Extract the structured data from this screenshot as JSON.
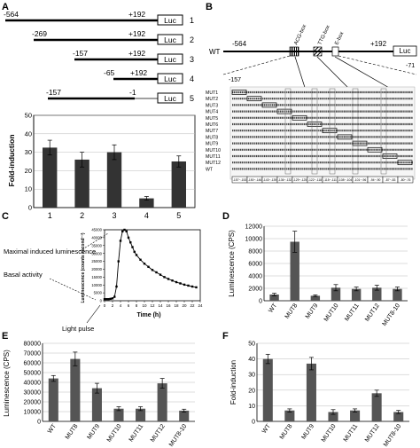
{
  "panels": {
    "A": {
      "letter": "A",
      "constructs": [
        {
          "id": "1",
          "start": "-564",
          "end": "+192",
          "reporter": "Luc"
        },
        {
          "id": "2",
          "start": "-269",
          "end": "+192",
          "reporter": "Luc"
        },
        {
          "id": "3",
          "start": "-157",
          "end": "+192",
          "reporter": "Luc"
        },
        {
          "id": "4",
          "start": "-65",
          "end": "+192",
          "reporter": "Luc"
        },
        {
          "id": "5",
          "start": "-157",
          "end": "-1",
          "reporter": "Luc"
        }
      ]
    },
    "B": {
      "letter": "B",
      "wt_label": "WT",
      "start": "-564",
      "end": "+192",
      "reporter": "Luc",
      "boxes": [
        "ACG-box",
        "TTG-box",
        "E-box"
      ],
      "zoom_start": "-157",
      "zoom_end": "-71",
      "rows": [
        "MUT1",
        "MUT2",
        "MUT3",
        "MUT4",
        "MUT5",
        "MUT6",
        "MUT7",
        "MUT8",
        "MUT9",
        "MUT10",
        "MUT11",
        "MUT12",
        "WT"
      ],
      "segments": [
        "-157~-153",
        "-150~-146",
        "-143~-139",
        "-136~-132",
        "-129~-125",
        "-122~-118",
        "-115~-111",
        "-108~-104",
        "-101~-96",
        "-94~-90",
        "-87~-83",
        "-80~-76"
      ]
    }
  },
  "chart_data": [
    {
      "panel": "A",
      "type": "bar",
      "categories": [
        "1",
        "2",
        "3",
        "4",
        "5"
      ],
      "values": [
        32.5,
        26,
        30,
        5,
        25
      ],
      "errors": [
        4,
        4,
        4,
        1,
        3
      ],
      "ylabel": "Fold-induction",
      "ylim": [
        0,
        50
      ],
      "yticks": [
        "0",
        "10",
        "20",
        "30",
        "40",
        "50"
      ],
      "grid": true,
      "color": "#333333"
    },
    {
      "panel": "C",
      "type": "line",
      "x": [
        0,
        0.5,
        1,
        1.5,
        2,
        2.5,
        3,
        3.5,
        4,
        4.5,
        5,
        5.5,
        6,
        6.5,
        7,
        7.5,
        8,
        9,
        10,
        11,
        12,
        13,
        14,
        15,
        16,
        17,
        18,
        19,
        20,
        21,
        22,
        23
      ],
      "y": [
        1000,
        1000,
        1000,
        1200,
        1500,
        2500,
        9000,
        25000,
        38000,
        44000,
        45000,
        44000,
        40000,
        37000,
        34000,
        31000,
        29000,
        26000,
        23500,
        21500,
        19500,
        18000,
        16500,
        15000,
        13800,
        12800,
        11800,
        11000,
        10200,
        9600,
        9000,
        8500
      ],
      "xlabel": "Time (h)",
      "ylabel": "Luminescence (counts second⁻¹)",
      "xlim": [
        0,
        24
      ],
      "ylim": [
        0,
        45000
      ],
      "xticks": [
        "0",
        "2",
        "4",
        "6",
        "8",
        "10",
        "12",
        "14",
        "16",
        "18",
        "20",
        "22",
        "24"
      ],
      "yticks": [
        "0",
        "5000",
        "10000",
        "15000",
        "20000",
        "25000",
        "30000",
        "35000",
        "40000",
        "45000"
      ],
      "annotations": [
        "Maximal induced luminescence",
        "Basal activity",
        "Light pulse"
      ]
    },
    {
      "panel": "D",
      "type": "bar",
      "categories": [
        "WT",
        "MUT8",
        "MUT9",
        "MUT10",
        "MUT11",
        "MUT12",
        "MUT8-10"
      ],
      "values": [
        1000,
        9500,
        800,
        2100,
        1900,
        2100,
        1900
      ],
      "errors": [
        200,
        1700,
        150,
        500,
        300,
        400,
        300
      ],
      "ylabel": "Luminescence (CPS)",
      "ylim": [
        0,
        12000
      ],
      "yticks": [
        "0",
        "2000",
        "4000",
        "6000",
        "8000",
        "10000",
        "12000"
      ],
      "grid": true,
      "color": "#555555"
    },
    {
      "panel": "E",
      "type": "bar",
      "categories": [
        "WT",
        "MUT8",
        "MUT9",
        "MUT10",
        "MUT11",
        "MUT12",
        "MUT8-10"
      ],
      "values": [
        44000,
        64000,
        34000,
        13000,
        13000,
        39000,
        11000
      ],
      "errors": [
        3000,
        7000,
        5000,
        2000,
        2000,
        5000,
        1500
      ],
      "ylabel": "Luminescence (CPS)",
      "ylim": [
        0,
        80000
      ],
      "yticks": [
        "0",
        "10000",
        "20000",
        "30000",
        "40000",
        "50000",
        "60000",
        "70000",
        "80000"
      ],
      "grid": true,
      "color": "#555555"
    },
    {
      "panel": "F",
      "type": "bar",
      "categories": [
        "WT",
        "MUT8",
        "MUT9",
        "MUT10",
        "MUT11",
        "MUT12",
        "MUT8-10"
      ],
      "values": [
        40,
        7,
        37,
        6,
        7,
        18,
        6
      ],
      "errors": [
        3,
        1,
        4,
        1.5,
        1,
        2,
        1
      ],
      "ylabel": "Fold-induction",
      "ylim": [
        0,
        50
      ],
      "yticks": [
        "0",
        "10",
        "20",
        "30",
        "40",
        "50"
      ],
      "grid": true,
      "color": "#555555"
    }
  ],
  "letters": {
    "C": "C",
    "D": "D",
    "E": "E",
    "F": "F"
  }
}
